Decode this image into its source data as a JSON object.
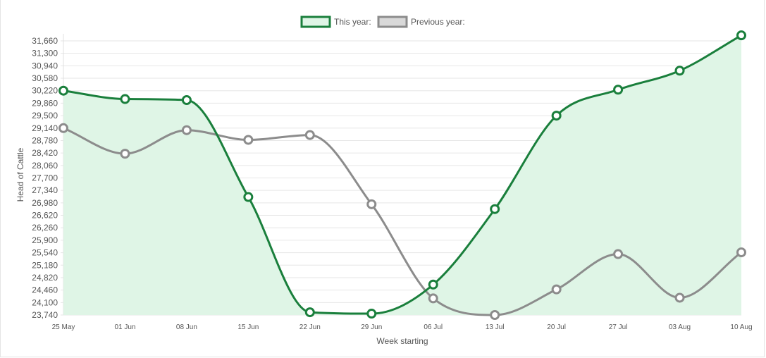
{
  "chart_data": {
    "type": "line",
    "title": "",
    "xlabel": "Week starting",
    "ylabel": "Head of Cattle",
    "categories": [
      "25 May",
      "01 Jun",
      "08 Jun",
      "15 Jun",
      "22 Jun",
      "29 Jun",
      "06 Jul",
      "13 Jul",
      "20 Jul",
      "27 Jul",
      "03 Aug",
      "10 Aug"
    ],
    "ylim": [
      23740,
      31660
    ],
    "yticks": [
      "31,660",
      "31,300",
      "30,940",
      "30,580",
      "30,220",
      "29,860",
      "29,500",
      "29,140",
      "28,780",
      "28,420",
      "28,060",
      "27,700",
      "27,340",
      "26,980",
      "26,620",
      "26,260",
      "25,900",
      "25,540",
      "25,180",
      "24,820",
      "24,460",
      "24,100",
      "23,740"
    ],
    "ytick_values": [
      31660,
      31300,
      30940,
      30580,
      30220,
      29860,
      29500,
      29140,
      28780,
      28420,
      28060,
      27700,
      27340,
      26980,
      26620,
      26260,
      25900,
      25540,
      25180,
      24820,
      24460,
      24100,
      23740
    ],
    "grid": true,
    "legend_position": "top-center",
    "series": [
      {
        "name": "This year:",
        "color": "#1a7f3c",
        "fill": "#dff5e6",
        "filled": true,
        "values": [
          30220,
          29980,
          29950,
          27150,
          23820,
          23780,
          24620,
          26800,
          29500,
          30250,
          30800,
          31820
        ]
      },
      {
        "name": "Previous year:",
        "color": "#8c8c8c",
        "fill": "#d9d9d9",
        "filled": false,
        "values": [
          29140,
          28400,
          29080,
          28800,
          28940,
          26940,
          24220,
          23740,
          24480,
          25500,
          24240,
          25550
        ]
      }
    ]
  }
}
